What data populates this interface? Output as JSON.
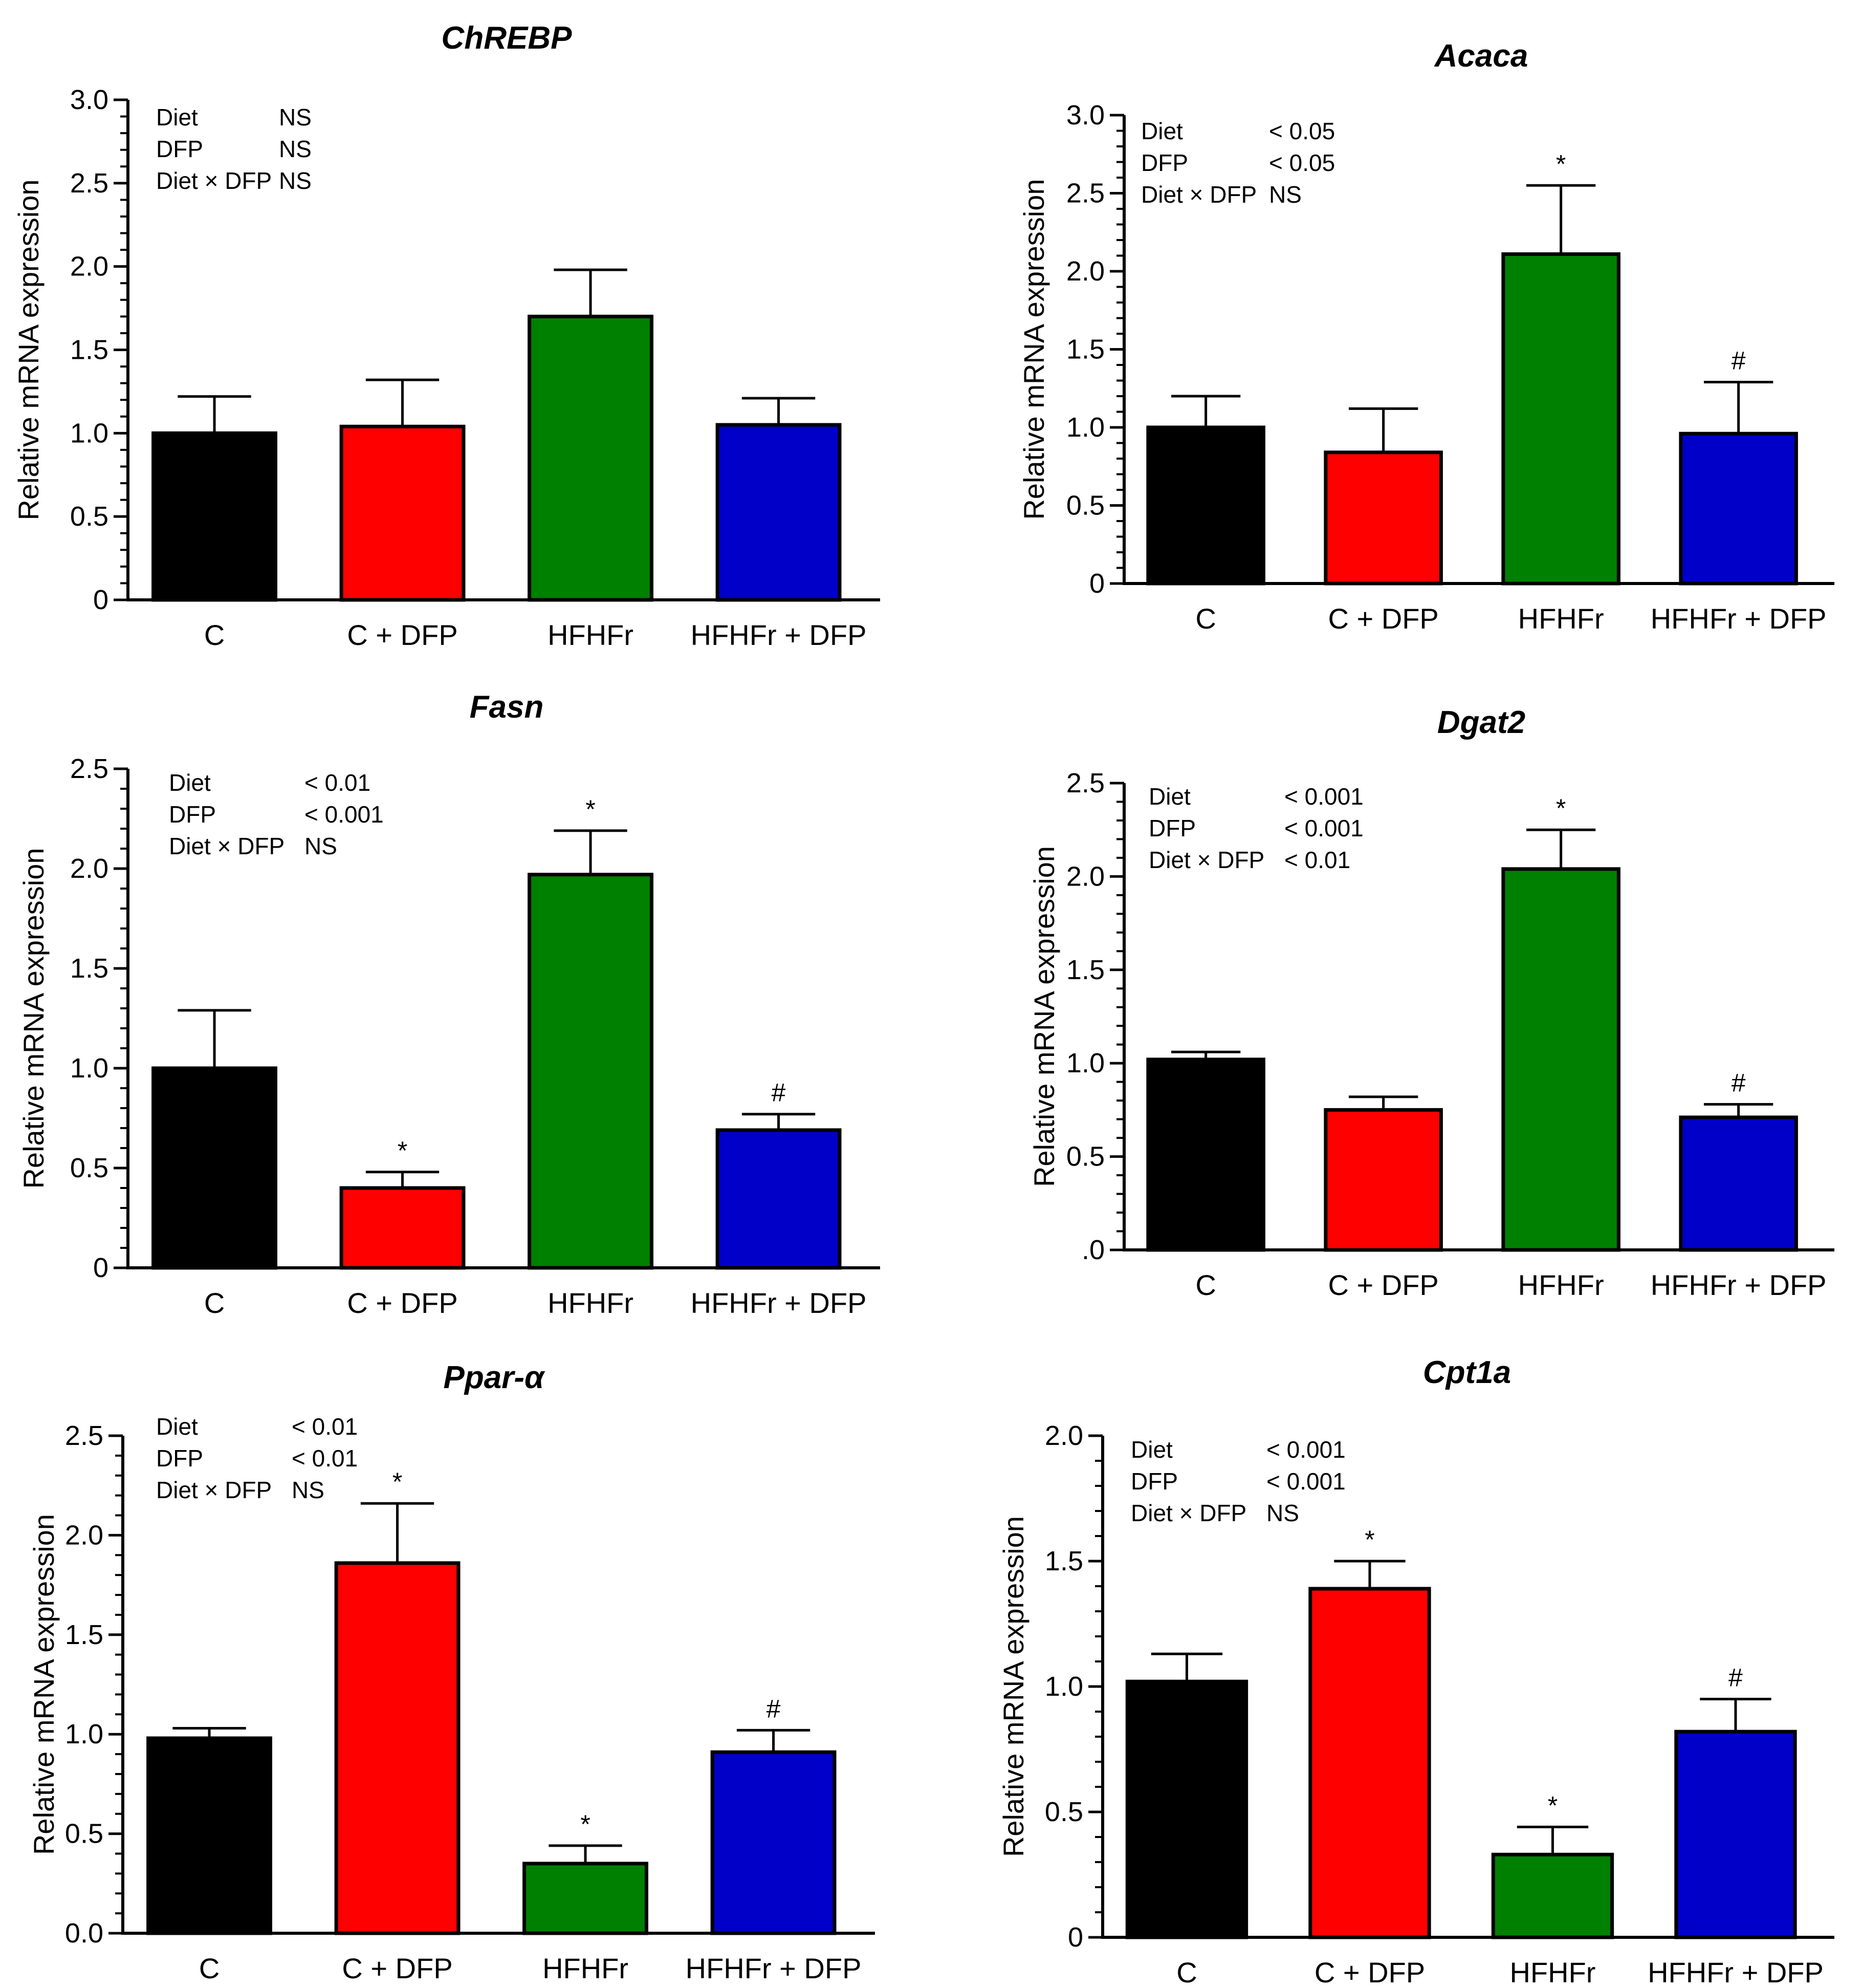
{
  "chart_data": [
    {
      "type": "bar",
      "title": "ChREBP",
      "ylabel": "Relative mRNA expression",
      "xlabel": "",
      "categories": [
        "C",
        "C + DFP",
        "HFHFr",
        "HFHFr + DFP"
      ],
      "values": [
        1.0,
        1.04,
        1.7,
        1.05
      ],
      "errors": [
        0.22,
        0.28,
        0.28,
        0.16
      ],
      "markers": [
        "",
        "",
        "",
        ""
      ],
      "colors": [
        "#000000",
        "#ff0000",
        "#008000",
        "#0000c8"
      ],
      "ylim": [
        0,
        3.0
      ],
      "yticks": [
        "0",
        "0.5",
        "1.0",
        "1.5",
        "2.0",
        "2.5",
        "3.0"
      ],
      "stats": [
        {
          "label": "Diet",
          "value": "NS"
        },
        {
          "label": "DFP",
          "value": "NS"
        },
        {
          "label": "Diet × DFP",
          "value": "NS"
        }
      ]
    },
    {
      "type": "bar",
      "title": "Acaca",
      "ylabel": "Relative mRNA expression",
      "xlabel": "",
      "categories": [
        "C",
        "C + DFP",
        "HFHFr",
        "HFHFr + DFP"
      ],
      "values": [
        1.0,
        0.84,
        2.11,
        0.96
      ],
      "errors": [
        0.2,
        0.28,
        0.44,
        0.33
      ],
      "markers": [
        "",
        "",
        "*",
        "#"
      ],
      "colors": [
        "#000000",
        "#ff0000",
        "#008000",
        "#0000c8"
      ],
      "ylim": [
        0,
        3.0
      ],
      "yticks": [
        "0",
        "0.5",
        "1.0",
        "1.5",
        "2.0",
        "2.5",
        "3.0"
      ],
      "stats": [
        {
          "label": "Diet",
          "value": "< 0.05"
        },
        {
          "label": "DFP",
          "value": "< 0.05"
        },
        {
          "label": "Diet × DFP",
          "value": "NS"
        }
      ]
    },
    {
      "type": "bar",
      "title": "Fasn",
      "ylabel": "Relative mRNA expression",
      "xlabel": "",
      "categories": [
        "C",
        "C + DFP",
        "HFHFr",
        "HFHFr + DFP"
      ],
      "values": [
        1.0,
        0.4,
        1.97,
        0.69
      ],
      "errors": [
        0.29,
        0.08,
        0.22,
        0.08
      ],
      "markers": [
        "",
        "*",
        "*",
        "#"
      ],
      "colors": [
        "#000000",
        "#ff0000",
        "#008000",
        "#0000c8"
      ],
      "ylim": [
        0,
        2.5
      ],
      "yticks": [
        "0",
        "0.5",
        "1.0",
        "1.5",
        "2.0",
        "2.5"
      ],
      "stats": [
        {
          "label": "Diet",
          "value": "< 0.01"
        },
        {
          "label": "DFP",
          "value": "< 0.001"
        },
        {
          "label": "Diet × DFP",
          "value": "NS"
        }
      ]
    },
    {
      "type": "bar",
      "title": "Dgat2",
      "ylabel": "Relative mRNA expression",
      "xlabel": "",
      "categories": [
        "C",
        "C + DFP",
        "HFHFr",
        "HFHFr + DFP"
      ],
      "values": [
        1.02,
        0.75,
        2.04,
        0.71
      ],
      "errors": [
        0.04,
        0.07,
        0.21,
        0.07
      ],
      "markers": [
        "",
        "",
        "*",
        "#"
      ],
      "colors": [
        "#000000",
        "#ff0000",
        "#008000",
        "#0000c8"
      ],
      "ylim": [
        0,
        2.5
      ],
      "yticks": [
        ".0",
        "0.5",
        "1.0",
        "1.5",
        "2.0",
        "2.5"
      ],
      "stats": [
        {
          "label": "Diet",
          "value": "< 0.001"
        },
        {
          "label": "DFP",
          "value": "< 0.001"
        },
        {
          "label": "Diet × DFP",
          "value": "< 0.01"
        }
      ]
    },
    {
      "type": "bar",
      "title": "Ppar-α",
      "ylabel": "Relative mRNA expression",
      "xlabel": "",
      "categories": [
        "C",
        "C + DFP",
        "HFHFr",
        "HFHFr + DFP"
      ],
      "values": [
        0.98,
        1.86,
        0.35,
        0.91
      ],
      "errors": [
        0.05,
        0.3,
        0.09,
        0.11
      ],
      "markers": [
        "",
        "*",
        "*",
        "#"
      ],
      "colors": [
        "#000000",
        "#ff0000",
        "#008000",
        "#0000c8"
      ],
      "ylim": [
        0,
        2.5
      ],
      "yticks": [
        "0.0",
        "0.5",
        "1.0",
        "1.5",
        "2.0",
        "2.5"
      ],
      "stats": [
        {
          "label": "Diet",
          "value": "< 0.01"
        },
        {
          "label": "DFP",
          "value": "< 0.01"
        },
        {
          "label": "Diet × DFP",
          "value": "NS"
        }
      ]
    },
    {
      "type": "bar",
      "title": "Cpt1a",
      "ylabel": "Relative mRNA expression",
      "xlabel": "",
      "categories": [
        "C",
        "C + DFP",
        "HFHFr",
        "HFHFr + DFP"
      ],
      "values": [
        1.02,
        1.39,
        0.33,
        0.82
      ],
      "errors": [
        0.11,
        0.11,
        0.11,
        0.13
      ],
      "markers": [
        "",
        "*",
        "*",
        "#"
      ],
      "colors": [
        "#000000",
        "#ff0000",
        "#008000",
        "#0000c8"
      ],
      "ylim": [
        0,
        2.0
      ],
      "yticks": [
        "0",
        "0.5",
        "1.0",
        "1.5",
        "2.0"
      ],
      "stats": [
        {
          "label": "Diet",
          "value": "< 0.001"
        },
        {
          "label": "DFP",
          "value": "< 0.001"
        },
        {
          "label": "Diet × DFP",
          "value": "NS"
        }
      ]
    }
  ]
}
